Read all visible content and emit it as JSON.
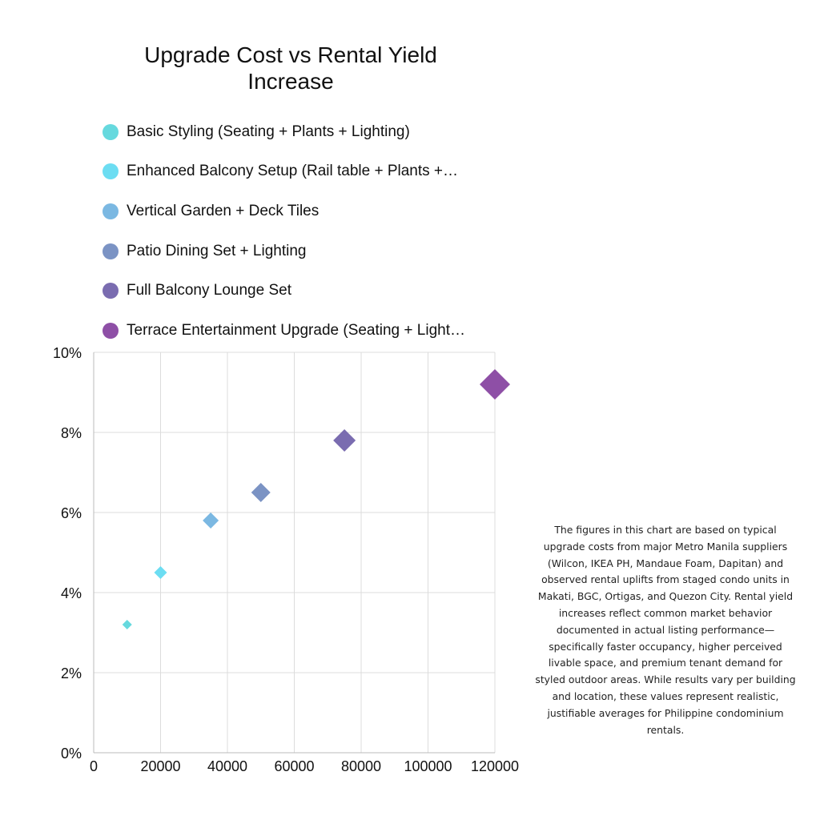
{
  "chart_data": {
    "type": "scatter",
    "title": "Upgrade Cost vs Rental Yield Increase",
    "xlabel": "",
    "ylabel": "",
    "xlim": [
      0,
      120000
    ],
    "ylim": [
      0,
      10
    ],
    "x_ticks": [
      "0",
      "20000",
      "40000",
      "60000",
      "80000",
      "100000",
      "120000"
    ],
    "y_ticks": [
      "0%",
      "2%",
      "4%",
      "6%",
      "8%",
      "10%"
    ],
    "grid": true,
    "legend_position": "top",
    "marker": "diamond",
    "series": [
      {
        "name": "Basic Styling (Seating + Plants + Lighting)",
        "x": 10000,
        "y": 3.2,
        "color": "#66D9DE"
      },
      {
        "name": "Enhanced Balcony Setup (Rail table + Plants +…",
        "x": 20000,
        "y": 4.5,
        "color": "#6CDDF2"
      },
      {
        "name": "Vertical Garden + Deck Tiles",
        "x": 35000,
        "y": 5.8,
        "color": "#7BB8E2"
      },
      {
        "name": "Patio Dining Set + Lighting",
        "x": 50000,
        "y": 6.5,
        "color": "#7B93C4"
      },
      {
        "name": "Full Balcony Lounge Set",
        "x": 75000,
        "y": 7.8,
        "color": "#7A6CB0"
      },
      {
        "name": "Terrace Entertainment Upgrade (Seating + Light…",
        "x": 120000,
        "y": 9.2,
        "color": "#8E4FA6"
      }
    ]
  },
  "note": "The figures in this chart are based on typical upgrade costs from major Metro Manila suppliers (Wilcon, IKEA PH, Mandaue Foam, Dapitan) and observed rental uplifts from staged condo units in Makati, BGC, Ortigas, and Quezon City. Rental yield increases reflect common market behavior documented in actual listing performance—specifically faster occupancy, higher perceived livable space, and premium tenant demand for styled outdoor areas. While results vary per building and location, these values represent realistic, justifiable averages for Philippine condominium rentals."
}
